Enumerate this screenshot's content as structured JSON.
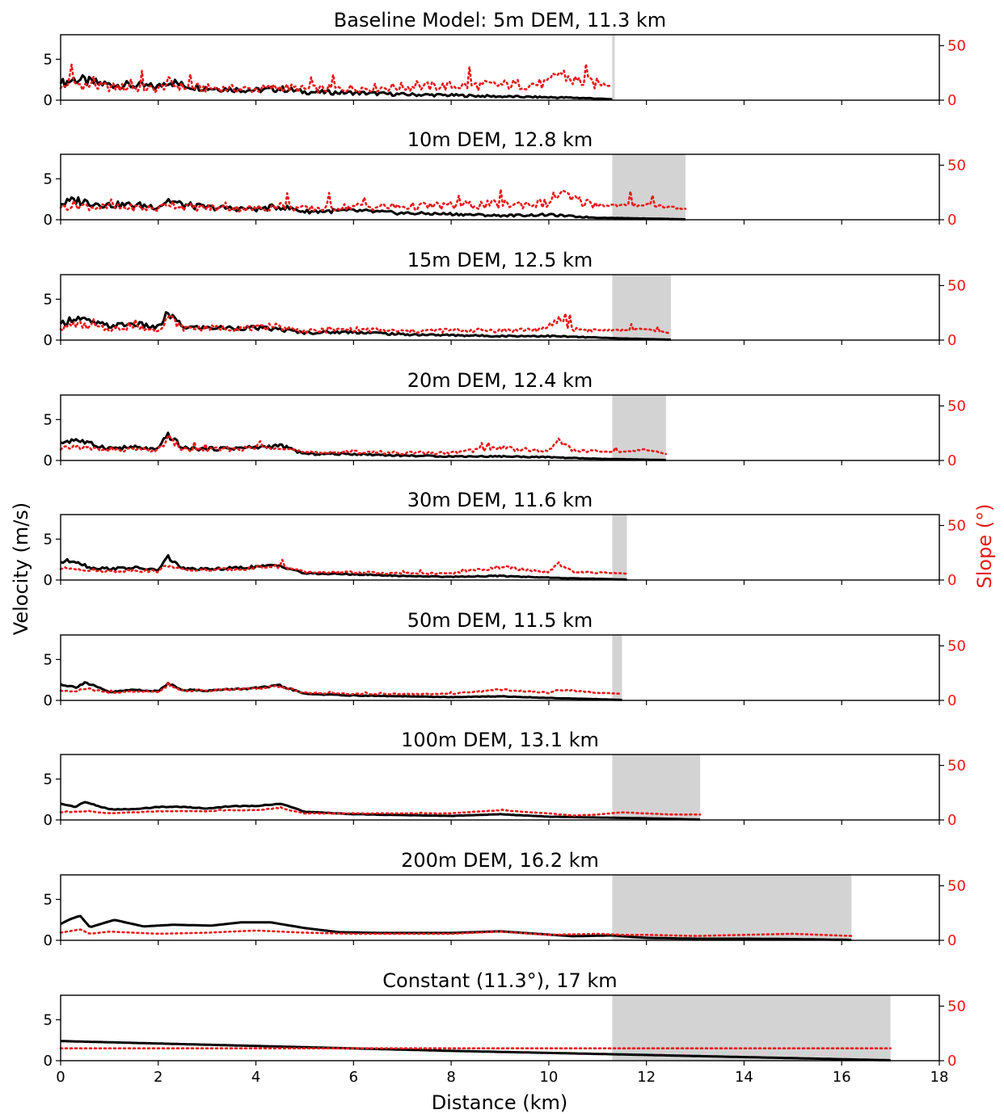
{
  "figure": {
    "ylabel_left": "Velocity (m/s)",
    "ylabel_right": "Slope (°)",
    "xlabel": "Distance (km)",
    "colors": {
      "velocity": "#000000",
      "slope": "#e8191a",
      "shade": "#d3d3d3",
      "axis": "#000000"
    }
  },
  "chart_data": [
    {
      "type": "line",
      "title": "Baseline Model: 5m DEM, 11.3 km",
      "xlim": [
        0,
        18
      ],
      "ylim": [
        0,
        8
      ],
      "ylim_right": [
        0,
        60
      ],
      "xticks": [
        0,
        2,
        4,
        6,
        8,
        10,
        12,
        14,
        16,
        18
      ],
      "yticks": [
        0,
        5
      ],
      "yticks_right": [
        0,
        50
      ],
      "shade": [
        11.3,
        11.35
      ],
      "runout_km": 11.3,
      "roughness": 1.0,
      "series": [
        {
          "axis": "left",
          "style": "solid",
          "x": [
            0,
            0.3,
            0.6,
            1.0,
            1.5,
            2.0,
            2.2,
            2.5,
            3.0,
            4.0,
            4.5,
            5.0,
            6.0,
            7.0,
            8.0,
            9.0,
            10.0,
            10.5,
            11.0,
            11.3
          ],
          "y": [
            2.0,
            2.6,
            2.2,
            1.9,
            1.8,
            1.6,
            2.4,
            1.8,
            1.5,
            1.2,
            1.4,
            1.0,
            0.9,
            0.7,
            0.6,
            0.45,
            0.35,
            0.3,
            0.2,
            0.1
          ]
        },
        {
          "axis": "right",
          "style": "dotted",
          "x": [
            0,
            0.3,
            0.6,
            1.0,
            1.5,
            2.0,
            2.2,
            2.5,
            3.0,
            4.0,
            4.5,
            5.0,
            6.0,
            7.0,
            8.0,
            9.0,
            10.0,
            10.2,
            10.5,
            11.0,
            11.3
          ],
          "y": [
            11,
            15,
            13,
            12,
            11,
            10,
            16,
            12,
            11,
            10,
            12,
            10,
            11,
            12,
            13,
            14,
            15,
            26,
            18,
            15,
            14
          ]
        }
      ]
    },
    {
      "type": "line",
      "title": "10m DEM, 12.8 km",
      "xlim": [
        0,
        18
      ],
      "ylim": [
        0,
        8
      ],
      "ylim_right": [
        0,
        60
      ],
      "xticks": [
        0,
        2,
        4,
        6,
        8,
        10,
        12,
        14,
        16,
        18
      ],
      "yticks": [
        0,
        5
      ],
      "yticks_right": [
        0,
        50
      ],
      "shade": [
        11.3,
        12.8
      ],
      "runout_km": 12.8,
      "roughness": 0.85,
      "series": [
        {
          "axis": "left",
          "style": "solid",
          "x": [
            0,
            0.3,
            0.6,
            1.0,
            1.5,
            2.0,
            2.2,
            2.5,
            3.0,
            4.0,
            4.5,
            5.0,
            6.0,
            7.0,
            8.0,
            9.0,
            10.0,
            10.5,
            11.0,
            11.5,
            12.0,
            12.8
          ],
          "y": [
            1.9,
            2.4,
            2.1,
            1.8,
            1.8,
            1.6,
            2.4,
            1.8,
            1.5,
            1.3,
            1.6,
            1.0,
            1.1,
            0.8,
            0.7,
            0.5,
            0.6,
            0.4,
            0.25,
            0.2,
            0.15,
            0.05
          ]
        },
        {
          "axis": "right",
          "style": "dotted",
          "x": [
            0,
            0.3,
            0.6,
            1.0,
            1.5,
            2.0,
            2.2,
            2.5,
            3.0,
            4.0,
            4.5,
            5.0,
            6.0,
            7.0,
            8.0,
            9.0,
            10.0,
            10.2,
            10.5,
            11.0,
            11.5,
            12.0,
            12.8
          ],
          "y": [
            11,
            14,
            12,
            11,
            11,
            10,
            16,
            12,
            11,
            10,
            13,
            10,
            12,
            12,
            13,
            14,
            15,
            25,
            18,
            14,
            13,
            14,
            10
          ]
        }
      ]
    },
    {
      "type": "line",
      "title": "15m DEM, 12.5 km",
      "xlim": [
        0,
        18
      ],
      "ylim": [
        0,
        8
      ],
      "ylim_right": [
        0,
        60
      ],
      "xticks": [
        0,
        2,
        4,
        6,
        8,
        10,
        12,
        14,
        16,
        18
      ],
      "yticks": [
        0,
        5
      ],
      "yticks_right": [
        0,
        50
      ],
      "shade": [
        11.3,
        12.5
      ],
      "runout_km": 12.5,
      "roughness": 0.65,
      "series": [
        {
          "axis": "left",
          "style": "solid",
          "x": [
            0,
            0.3,
            0.6,
            1.0,
            1.5,
            2.0,
            2.2,
            2.5,
            3.0,
            4.0,
            4.5,
            5.0,
            6.0,
            7.0,
            8.0,
            9.0,
            10.0,
            10.5,
            11.0,
            11.5,
            12.5
          ],
          "y": [
            2.0,
            2.8,
            2.2,
            1.7,
            2.0,
            1.5,
            3.3,
            1.6,
            1.5,
            1.5,
            1.3,
            0.9,
            1.0,
            0.7,
            0.6,
            0.5,
            0.5,
            0.4,
            0.3,
            0.2,
            0.05
          ]
        },
        {
          "axis": "right",
          "style": "dotted",
          "x": [
            0,
            0.3,
            0.6,
            1.0,
            1.5,
            2.0,
            2.2,
            2.5,
            3.0,
            4.0,
            4.5,
            5.0,
            6.0,
            7.0,
            8.0,
            9.0,
            10.0,
            10.2,
            10.5,
            11.0,
            11.5,
            12.0,
            12.5
          ],
          "y": [
            10,
            15,
            12,
            10,
            12,
            9,
            22,
            11,
            11,
            11,
            12,
            8,
            10,
            8,
            9,
            9,
            10,
            20,
            10,
            9,
            9,
            10,
            6
          ]
        }
      ]
    },
    {
      "type": "line",
      "title": "20m DEM, 12.4 km",
      "xlim": [
        0,
        18
      ],
      "ylim": [
        0,
        8
      ],
      "ylim_right": [
        0,
        60
      ],
      "xticks": [
        0,
        2,
        4,
        6,
        8,
        10,
        12,
        14,
        16,
        18
      ],
      "yticks": [
        0,
        5
      ],
      "yticks_right": [
        0,
        50
      ],
      "shade": [
        11.3,
        12.4
      ],
      "runout_km": 12.4,
      "roughness": 0.55,
      "series": [
        {
          "axis": "left",
          "style": "solid",
          "x": [
            0,
            0.3,
            0.6,
            1.0,
            1.5,
            2.0,
            2.2,
            2.5,
            3.0,
            4.0,
            4.5,
            5.0,
            6.0,
            7.0,
            8.0,
            9.0,
            10.0,
            10.5,
            11.0,
            11.5,
            12.4
          ],
          "y": [
            2.2,
            2.6,
            2.0,
            1.5,
            1.6,
            1.3,
            3.2,
            1.5,
            1.4,
            1.6,
            1.8,
            0.8,
            0.8,
            0.6,
            0.5,
            0.5,
            0.4,
            0.3,
            0.2,
            0.15,
            0.05
          ]
        },
        {
          "axis": "right",
          "style": "dotted",
          "x": [
            0,
            0.3,
            0.6,
            1.0,
            1.5,
            2.0,
            2.2,
            2.5,
            3.0,
            4.0,
            4.5,
            5.0,
            6.0,
            7.0,
            8.0,
            9.0,
            10.0,
            10.2,
            10.5,
            11.0,
            11.5,
            12.0,
            12.4
          ],
          "y": [
            10,
            13,
            11,
            9,
            10,
            9,
            21,
            10,
            10,
            11,
            13,
            7,
            8,
            7,
            7,
            12,
            8,
            20,
            9,
            8,
            8,
            10,
            6
          ]
        }
      ]
    },
    {
      "type": "line",
      "title": "30m DEM, 11.6 km",
      "xlim": [
        0,
        18
      ],
      "ylim": [
        0,
        8
      ],
      "ylim_right": [
        0,
        60
      ],
      "xticks": [
        0,
        2,
        4,
        6,
        8,
        10,
        12,
        14,
        16,
        18
      ],
      "yticks": [
        0,
        5
      ],
      "yticks_right": [
        0,
        50
      ],
      "shade": [
        11.3,
        11.6
      ],
      "runout_km": 11.6,
      "roughness": 0.4,
      "series": [
        {
          "axis": "left",
          "style": "solid",
          "x": [
            0,
            0.3,
            0.6,
            1.0,
            1.5,
            2.0,
            2.2,
            2.5,
            3.0,
            4.0,
            4.5,
            5.0,
            6.0,
            7.0,
            8.0,
            9.0,
            10.0,
            10.5,
            11.0,
            11.6
          ],
          "y": [
            2.2,
            2.4,
            1.5,
            1.4,
            1.5,
            1.2,
            2.8,
            1.4,
            1.3,
            1.6,
            1.8,
            0.8,
            0.7,
            0.5,
            0.4,
            0.5,
            0.3,
            0.2,
            0.15,
            0.05
          ]
        },
        {
          "axis": "right",
          "style": "dotted",
          "x": [
            0,
            0.3,
            0.6,
            1.0,
            1.5,
            2.0,
            2.2,
            2.5,
            3.0,
            4.0,
            4.5,
            5.0,
            6.0,
            7.0,
            8.0,
            9.0,
            10.0,
            10.2,
            10.5,
            11.0,
            11.6
          ],
          "y": [
            10,
            11,
            9,
            8,
            9,
            8,
            14,
            9,
            9,
            11,
            13,
            7,
            7,
            6,
            6,
            12,
            7,
            15,
            7,
            7,
            6
          ]
        }
      ]
    },
    {
      "type": "line",
      "title": "50m DEM, 11.5 km",
      "xlim": [
        0,
        18
      ],
      "ylim": [
        0,
        8
      ],
      "ylim_right": [
        0,
        60
      ],
      "xticks": [
        0,
        2,
        4,
        6,
        8,
        10,
        12,
        14,
        16,
        18
      ],
      "yticks": [
        0,
        5
      ],
      "yticks_right": [
        0,
        50
      ],
      "shade": [
        11.3,
        11.5
      ],
      "runout_km": 11.5,
      "roughness": 0.25,
      "series": [
        {
          "axis": "left",
          "style": "solid",
          "x": [
            0,
            0.3,
            0.5,
            1.0,
            1.5,
            2.0,
            2.2,
            2.5,
            3.0,
            4.0,
            4.5,
            5.0,
            6.0,
            7.0,
            8.0,
            9.0,
            10.0,
            11.0,
            11.5
          ],
          "y": [
            2.0,
            1.6,
            2.2,
            1.0,
            1.3,
            1.1,
            2.1,
            1.3,
            1.2,
            1.5,
            1.8,
            0.8,
            0.6,
            0.5,
            0.4,
            0.5,
            0.3,
            0.15,
            0.05
          ]
        },
        {
          "axis": "right",
          "style": "dotted",
          "x": [
            0,
            0.3,
            0.5,
            1.0,
            1.5,
            2.0,
            2.2,
            2.5,
            3.0,
            4.0,
            4.5,
            5.0,
            6.0,
            7.0,
            8.0,
            9.0,
            10.0,
            10.2,
            11.0,
            11.5
          ],
          "y": [
            9,
            8,
            11,
            7,
            8,
            8,
            14,
            9,
            9,
            11,
            13,
            7,
            6,
            6,
            6,
            10,
            7,
            10,
            7,
            6
          ]
        }
      ]
    },
    {
      "type": "line",
      "title": "100m DEM, 13.1 km",
      "xlim": [
        0,
        18
      ],
      "ylim": [
        0,
        8
      ],
      "ylim_right": [
        0,
        60
      ],
      "xticks": [
        0,
        2,
        4,
        6,
        8,
        10,
        12,
        14,
        16,
        18
      ],
      "yticks": [
        0,
        5
      ],
      "yticks_right": [
        0,
        50
      ],
      "shade": [
        11.3,
        13.1
      ],
      "runout_km": 13.1,
      "roughness": 0.1,
      "series": [
        {
          "axis": "left",
          "style": "solid",
          "x": [
            0,
            0.3,
            0.5,
            1.0,
            1.5,
            2.0,
            2.5,
            3.0,
            3.5,
            4.0,
            4.5,
            5.0,
            6.0,
            7.0,
            8.0,
            9.0,
            10.0,
            11.0,
            12.0,
            13.1
          ],
          "y": [
            2.0,
            1.6,
            2.2,
            1.3,
            1.3,
            1.6,
            1.6,
            1.4,
            1.7,
            1.7,
            2.0,
            1.0,
            0.7,
            0.6,
            0.5,
            0.7,
            0.4,
            0.3,
            0.2,
            0.05
          ]
        },
        {
          "axis": "right",
          "style": "dotted",
          "x": [
            0,
            0.5,
            1.0,
            1.5,
            2.0,
            2.5,
            3.0,
            3.5,
            4.0,
            4.5,
            5.0,
            6.0,
            7.0,
            8.0,
            9.0,
            10.0,
            10.5,
            11.0,
            11.5,
            12.0,
            12.5,
            13.1
          ],
          "y": [
            7,
            8,
            6,
            7,
            8,
            8,
            8,
            9,
            9,
            11,
            6,
            6,
            6,
            6,
            9,
            6,
            4,
            5,
            7,
            6,
            5,
            5
          ]
        }
      ]
    },
    {
      "type": "line",
      "title": "200m DEM, 16.2 km",
      "xlim": [
        0,
        18
      ],
      "ylim": [
        0,
        8
      ],
      "ylim_right": [
        0,
        60
      ],
      "xticks": [
        0,
        2,
        4,
        6,
        8,
        10,
        12,
        14,
        16,
        18
      ],
      "yticks": [
        0,
        5
      ],
      "yticks_right": [
        0,
        50
      ],
      "shade": [
        11.3,
        16.2
      ],
      "runout_km": 16.2,
      "roughness": 0,
      "series": [
        {
          "axis": "left",
          "style": "solid",
          "x": [
            0,
            0.2,
            0.4,
            0.6,
            1.1,
            1.7,
            2.3,
            3.1,
            3.7,
            4.3,
            5.0,
            5.7,
            6.5,
            8.0,
            9.0,
            10.0,
            10.5,
            11.3,
            12.0,
            13.0,
            14.0,
            15.0,
            16.2
          ],
          "y": [
            2.0,
            2.6,
            3.0,
            1.6,
            2.5,
            1.7,
            1.9,
            1.8,
            2.2,
            2.2,
            1.5,
            1.0,
            0.9,
            0.9,
            1.1,
            0.7,
            0.5,
            0.6,
            0.3,
            0.2,
            0.2,
            0.15,
            0.05
          ]
        },
        {
          "axis": "right",
          "style": "dotted",
          "x": [
            0,
            0.4,
            0.6,
            1.0,
            2.0,
            3.0,
            4.0,
            5.0,
            6.0,
            7.0,
            8.0,
            9.0,
            10.0,
            11.0,
            11.5,
            12.0,
            13.0,
            14.0,
            15.0,
            16.2
          ],
          "y": [
            7,
            10,
            6,
            8,
            6,
            7,
            9,
            7,
            6,
            6,
            6,
            8,
            5,
            6,
            5,
            5,
            4,
            5,
            6,
            4
          ]
        }
      ]
    },
    {
      "type": "line",
      "title": "Constant (11.3°), 17 km",
      "xlim": [
        0,
        18
      ],
      "ylim": [
        0,
        8
      ],
      "ylim_right": [
        0,
        60
      ],
      "xticks": [
        0,
        2,
        4,
        6,
        8,
        10,
        12,
        14,
        16,
        18
      ],
      "yticks": [
        0,
        5
      ],
      "yticks_right": [
        0,
        50
      ],
      "shade": [
        11.3,
        17.0
      ],
      "runout_km": 17.0,
      "roughness": 0,
      "series": [
        {
          "axis": "left",
          "style": "solid",
          "x": [
            0,
            4,
            8,
            12,
            17
          ],
          "y": [
            2.4,
            1.8,
            1.2,
            0.7,
            0.05
          ]
        },
        {
          "axis": "right",
          "style": "dotted",
          "x": [
            0,
            17
          ],
          "y": [
            11.3,
            11.3
          ]
        }
      ]
    }
  ]
}
